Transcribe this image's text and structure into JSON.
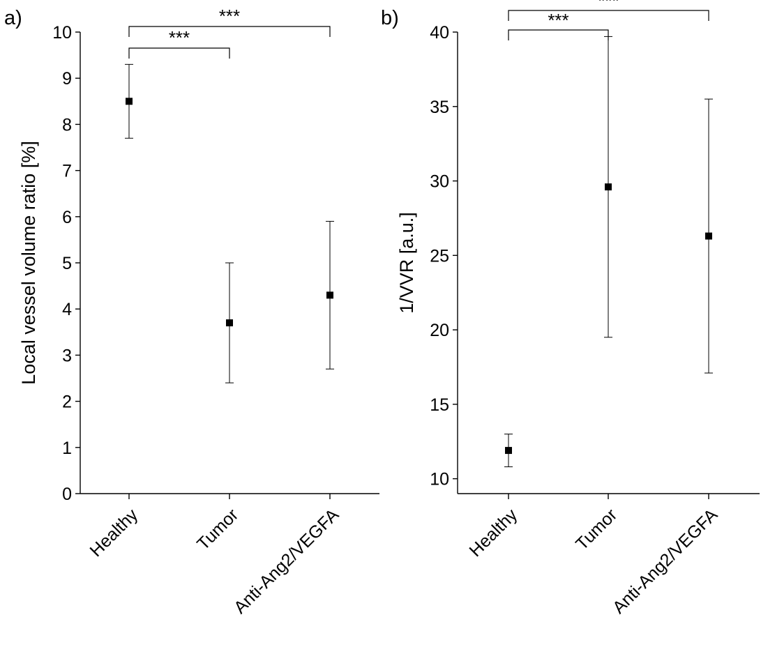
{
  "chart_data": [
    {
      "type": "scatter",
      "panel_label": "a)",
      "title": "",
      "xlabel": "",
      "ylabel": "Local vessel volume ratio [%]",
      "ylim": [
        0,
        10
      ],
      "yticks": [
        "0",
        "1",
        "2",
        "3",
        "4",
        "5",
        "6",
        "7",
        "8",
        "9",
        "10"
      ],
      "categories": [
        "Healthy",
        "Tumor",
        "Anti-Ang2/VEGFA"
      ],
      "values": [
        8.5,
        3.7,
        4.3
      ],
      "error_low": [
        7.7,
        2.4,
        2.7
      ],
      "error_high": [
        9.3,
        5.0,
        5.9
      ],
      "significance": [
        {
          "from": 0,
          "to": 1,
          "label": "***"
        },
        {
          "from": 0,
          "to": 2,
          "label": "***"
        }
      ]
    },
    {
      "type": "scatter",
      "panel_label": "b)",
      "title": "",
      "xlabel": "",
      "ylabel": "1/VVR [a.u.]",
      "ylim": [
        9.0,
        40
      ],
      "yticks": [
        "10",
        "15",
        "20",
        "25",
        "30",
        "35",
        "40"
      ],
      "categories": [
        "Healthy",
        "Tumor",
        "Anti-Ang2/VEGFA"
      ],
      "values": [
        11.9,
        29.6,
        26.3
      ],
      "error_low": [
        10.8,
        19.5,
        17.1
      ],
      "error_high": [
        13.0,
        39.7,
        35.5
      ],
      "significance": [
        {
          "from": 0,
          "to": 1,
          "label": "***"
        },
        {
          "from": 0,
          "to": 2,
          "label": "***"
        }
      ]
    }
  ]
}
